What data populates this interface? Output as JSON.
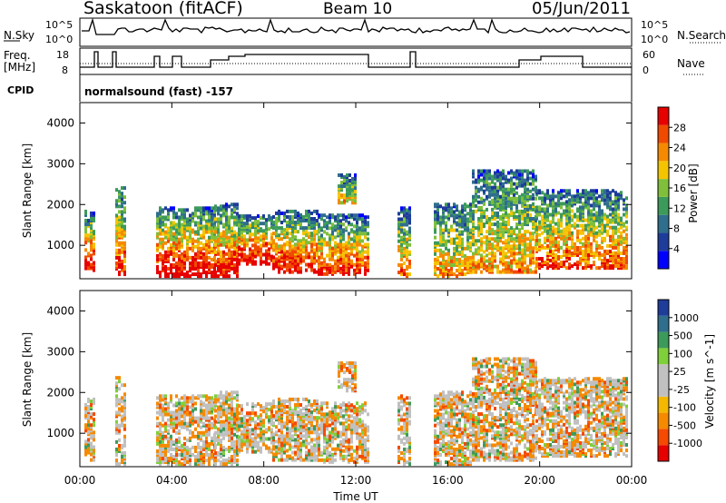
{
  "header": {
    "station": "Saskatoon (fitACF)",
    "beam": "Beam 10",
    "date": "05/Jun/2011",
    "nsky_label": "N.Sky",
    "nsearch_label": "N.Search",
    "freq_label_1": "Freq.",
    "freq_label_2": "[MHz]",
    "nave_label": "Nave",
    "cpid_label": "CPID",
    "cpid_value": "normalsound (fast) -157",
    "noise_ticks": [
      "10^5",
      "10^0"
    ],
    "noise_ticks_right": [
      "10^5",
      "10^0"
    ],
    "freq_ticks": [
      "18",
      "8"
    ],
    "nave_ticks": [
      "60",
      "0"
    ]
  },
  "chart_data": [
    {
      "type": "heatmap",
      "title": "",
      "xlabel": "",
      "ylabel": "Slant Range [km]",
      "y_ticks": [
        "4000",
        "3000",
        "2000",
        "1000"
      ],
      "ylim": [
        180,
        4500
      ],
      "xlim": [
        0,
        24
      ],
      "colorbar": {
        "label": "Power [dB]",
        "ticks": [
          "28",
          "24",
          "20",
          "16",
          "12",
          "8",
          "4"
        ],
        "colors": [
          "#0000ff",
          "#1e3c9a",
          "#2f6e8c",
          "#3c9a5a",
          "#7fbf3a",
          "#f5c400",
          "#f58a00",
          "#f04a00",
          "#e60000"
        ]
      }
    },
    {
      "type": "heatmap",
      "title": "",
      "xlabel": "Time UT",
      "ylabel": "Slant Range [km]",
      "y_ticks": [
        "4000",
        "3000",
        "2000",
        "1000"
      ],
      "x_ticks": [
        "00:00",
        "04:00",
        "08:00",
        "12:00",
        "16:00",
        "20:00",
        "00:00"
      ],
      "ylim": [
        180,
        4500
      ],
      "xlim": [
        0,
        24
      ],
      "colorbar": {
        "label": "Velocity [m s^-1]",
        "ticks": [
          "1000",
          "500",
          "100",
          "25",
          "-25",
          "-100",
          "-500",
          "-1000"
        ],
        "colors": [
          "#e60000",
          "#f54a00",
          "#f58a00",
          "#f5b800",
          "#c0c0c0",
          "#c0c0c0",
          "#7fd03a",
          "#3c9a5a",
          "#2f6e8c",
          "#1e3c9a"
        ]
      }
    }
  ]
}
